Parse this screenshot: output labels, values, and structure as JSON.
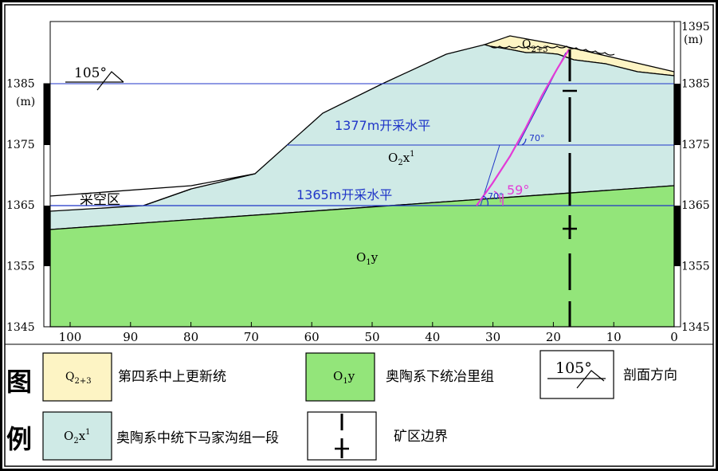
{
  "colors": {
    "quaternary": "#fdf4c4",
    "o2x1": "#cfeae6",
    "o1y": "#93e57a",
    "level_line": "#1f35c8",
    "incline_line": "#e33bd6",
    "annotation_blue": "#1f35c8",
    "border": "#000000"
  },
  "chart_data": {
    "type": "diagram",
    "x_axis": {
      "ticks": [
        "100",
        "90",
        "80",
        "70",
        "60",
        "50",
        "40",
        "30",
        "20",
        "10",
        "0"
      ],
      "range": [
        100,
        0
      ]
    },
    "y_axis_left": {
      "unit": "(m)",
      "ticks": [
        "1385",
        "1375",
        "1365",
        "1355",
        "1345"
      ],
      "range": [
        1345,
        1395
      ]
    },
    "y_axis_right": {
      "unit": "(m)",
      "ticks": [
        "1395",
        "1385",
        "1375",
        "1365",
        "1355",
        "1345"
      ]
    },
    "levels": [
      {
        "label": "1377m开采水平",
        "elevation": 1377
      },
      {
        "label": "1365m开采水平",
        "elevation": 1365
      }
    ],
    "units": {
      "q": {
        "base": "Q",
        "sub": "2+3"
      },
      "o2x": {
        "base": "O",
        "sub": "2",
        "tail": "x",
        "sup": "1"
      },
      "o1y": {
        "base": "O",
        "sub": "1",
        "tail": "y"
      }
    },
    "goaf_label": "采空区",
    "angle_labels": [
      "70°",
      "70°",
      "59°"
    ],
    "direction": {
      "value": "105°"
    }
  },
  "legend": {
    "title_chars": [
      "图",
      "例"
    ],
    "items": [
      {
        "label": "第四系中上更新统"
      },
      {
        "label": "奥陶系下统冶里组"
      },
      {
        "label": "剖面方向"
      },
      {
        "label": "奥陶系中统下马家沟组一段"
      },
      {
        "label": "矿区边界"
      }
    ],
    "direction_value": "105°"
  }
}
